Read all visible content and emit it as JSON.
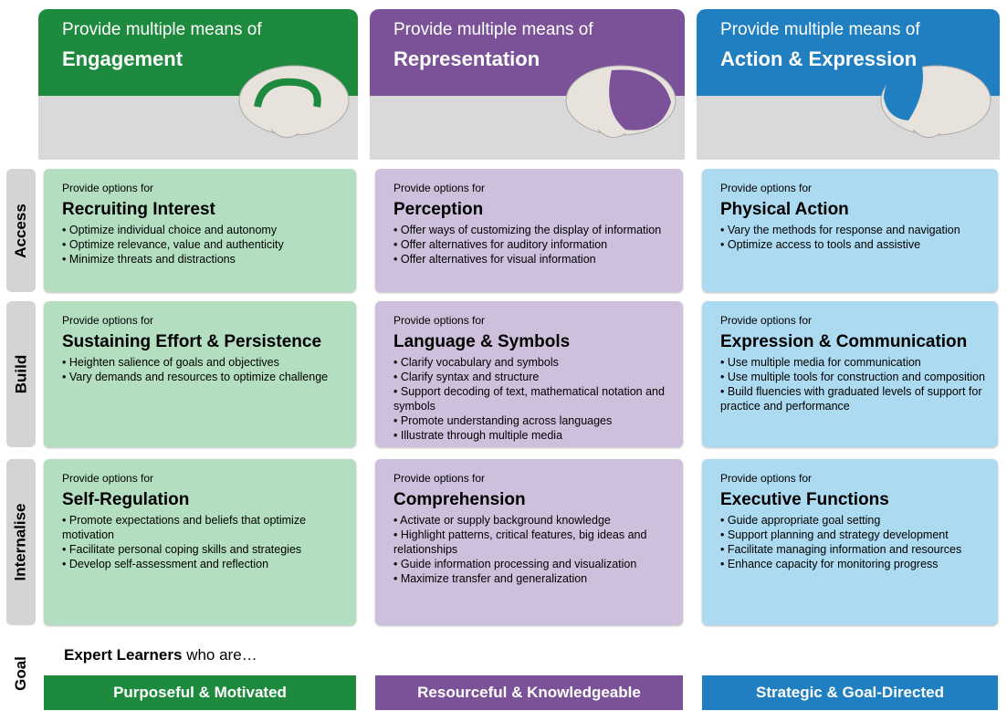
{
  "columns": [
    {
      "intro": "Provide multiple means of",
      "title": "Engagement",
      "goal": "Purposeful & Motivated"
    },
    {
      "intro": "Provide multiple means of",
      "title": "Representation",
      "goal": "Resourceful & Knowledgeable"
    },
    {
      "intro": "Provide multiple means of",
      "title": "Action & Expression",
      "goal": "Strategic & Goal-Directed"
    }
  ],
  "rows": [
    {
      "label": "Access",
      "cells": [
        {
          "intro": "Provide options for",
          "title": "Recruiting Interest",
          "items": [
            "Optimize individual choice and autonomy",
            "Optimize relevance, value and authenticity",
            "Minimize threats and distractions"
          ]
        },
        {
          "intro": "Provide options for",
          "title": "Perception",
          "items": [
            "Offer ways of customizing the display of information",
            "Offer alternatives for auditory information",
            "Offer alternatives for visual information"
          ]
        },
        {
          "intro": "Provide options for",
          "title": "Physical Action",
          "items": [
            "Vary the methods for response and navigation",
            "Optimize access to tools and assistive"
          ]
        }
      ]
    },
    {
      "label": "Build",
      "cells": [
        {
          "intro": "Provide options for",
          "title": "Sustaining Effort & Persistence",
          "items": [
            "Heighten salience of goals and objectives",
            "Vary demands and resources to optimize challenge"
          ]
        },
        {
          "intro": "Provide options for",
          "title": "Language & Symbols",
          "items": [
            "Clarify vocabulary and symbols",
            "Clarify syntax and structure",
            "Support decoding of text, mathematical notation and symbols",
            "Promote understanding across languages",
            "Illustrate through multiple media"
          ]
        },
        {
          "intro": "Provide options for",
          "title": "Expression & Communication",
          "items": [
            "Use multiple media for communication",
            "Use multiple tools for construction and composition",
            "Build fluencies with graduated levels of support for practice and performance"
          ]
        }
      ]
    },
    {
      "label": "Internalise",
      "cells": [
        {
          "intro": "Provide options for",
          "title": "Self-Regulation",
          "items": [
            "Promote expectations and beliefs that optimize motivation",
            "Facilitate personal coping skills and strategies",
            "Develop self-assessment and reflection"
          ]
        },
        {
          "intro": "Provide options for",
          "title": "Comprehension",
          "items": [
            "Activate or supply background knowledge",
            "Highlight patterns, critical features, big ideas and relationships",
            "Guide information processing and visualization",
            "Maximize transfer and generalization"
          ]
        },
        {
          "intro": "Provide options for",
          "title": "Executive Functions",
          "items": [
            "Guide appropriate goal setting",
            "Support planning and strategy development",
            "Facilitate managing information and resources",
            "Enhance capacity for monitoring progress"
          ]
        }
      ]
    }
  ],
  "goal": {
    "label": "Goal",
    "lead": "Expert Learners",
    "rest": "who are…"
  }
}
